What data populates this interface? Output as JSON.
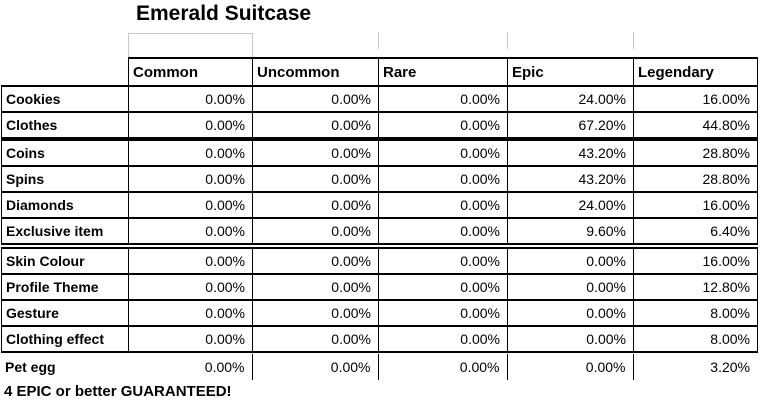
{
  "title": "Emerald Suitcase",
  "footer_note": "4 EPIC or better GUARANTEED!",
  "colors": {
    "background": "#ffffff",
    "text": "#000000",
    "table_border": "#000000",
    "gridline": "#c9c9c9"
  },
  "table": {
    "columns": [
      "Common",
      "Uncommon",
      "Rare",
      "Epic",
      "Legendary"
    ],
    "rows": [
      {
        "label": "Cookies",
        "values": [
          "0.00%",
          "0.00%",
          "0.00%",
          "24.00%",
          "16.00%"
        ]
      },
      {
        "label": "Clothes",
        "values": [
          "0.00%",
          "0.00%",
          "0.00%",
          "67.20%",
          "44.80%"
        ]
      },
      {
        "label": "Coins",
        "values": [
          "0.00%",
          "0.00%",
          "0.00%",
          "43.20%",
          "28.80%"
        ]
      },
      {
        "label": "Spins",
        "values": [
          "0.00%",
          "0.00%",
          "0.00%",
          "43.20%",
          "28.80%"
        ]
      },
      {
        "label": "Diamonds",
        "values": [
          "0.00%",
          "0.00%",
          "0.00%",
          "24.00%",
          "16.00%"
        ]
      },
      {
        "label": "Exclusive item",
        "values": [
          "0.00%",
          "0.00%",
          "0.00%",
          "9.60%",
          "6.40%"
        ]
      },
      {
        "label": "Skin Colour",
        "values": [
          "0.00%",
          "0.00%",
          "0.00%",
          "0.00%",
          "16.00%"
        ]
      },
      {
        "label": "Profile Theme",
        "values": [
          "0.00%",
          "0.00%",
          "0.00%",
          "0.00%",
          "12.80%"
        ]
      },
      {
        "label": "Gesture",
        "values": [
          "0.00%",
          "0.00%",
          "0.00%",
          "0.00%",
          "8.00%"
        ]
      },
      {
        "label": "Clothing effect",
        "values": [
          "0.00%",
          "0.00%",
          "0.00%",
          "0.00%",
          "8.00%"
        ]
      },
      {
        "label": "Pet egg",
        "values": [
          "0.00%",
          "0.00%",
          "0.00%",
          "0.00%",
          "3.20%"
        ]
      }
    ]
  }
}
